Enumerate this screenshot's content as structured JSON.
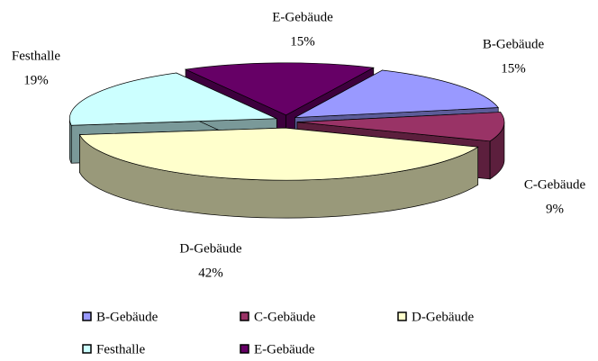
{
  "chart_data": {
    "type": "pie",
    "three_d": true,
    "categories": [
      "B-Gebäude",
      "C-Gebäude",
      "D-Gebäude",
      "Festhalle",
      "E-Gebäude"
    ],
    "values": [
      15,
      9,
      42,
      19,
      15
    ],
    "value_labels": [
      "15%",
      "9%",
      "42%",
      "19%",
      "15%"
    ],
    "colors": [
      "#9999ff",
      "#993366",
      "#ffffcc",
      "#ccffff",
      "#660066"
    ],
    "legend": "bottom"
  }
}
